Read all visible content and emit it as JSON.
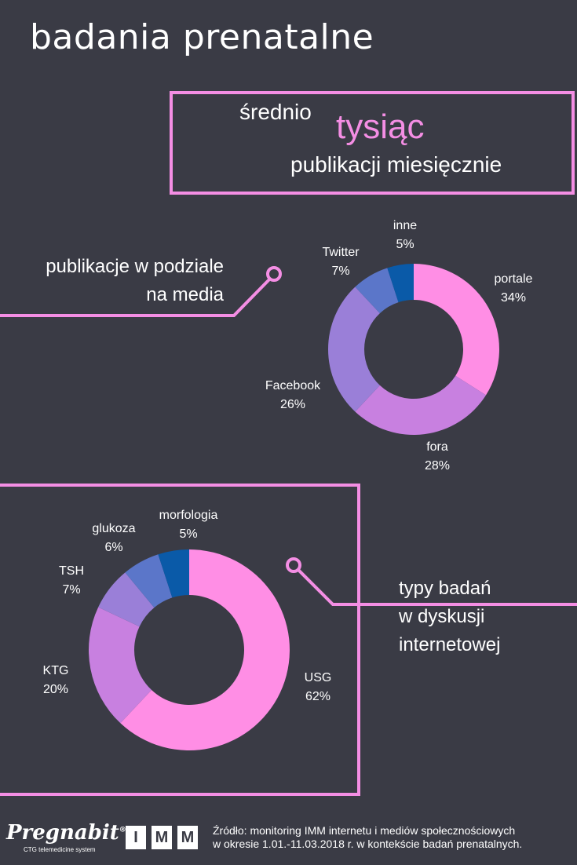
{
  "header": {
    "title": "badania prenatalne"
  },
  "stat": {
    "pre": "średnio",
    "highlight": "tysiąc",
    "post": "publikacji miesięcznie"
  },
  "section1": {
    "title_line1": "publikacje w podziale",
    "title_line2": "na media"
  },
  "section2": {
    "title_line1": "typy badań",
    "title_line2": "w dyskusji",
    "title_line3": "internetowej"
  },
  "colors": {
    "pink": "#f48ee4",
    "bg": "#3a3b45"
  },
  "chart_data": [
    {
      "type": "pie",
      "slices": [
        {
          "label": "portale",
          "value": 34,
          "display": "34%",
          "color": "#ff8ee5"
        },
        {
          "label": "fora",
          "value": 28,
          "display": "28%",
          "color": "#c880e0"
        },
        {
          "label": "Facebook",
          "value": 26,
          "display": "26%",
          "color": "#9a7fd8"
        },
        {
          "label": "Twitter",
          "value": 7,
          "display": "7%",
          "color": "#5b76c9"
        },
        {
          "label": "inne",
          "value": 5,
          "display": "5%",
          "color": "#0a5aa8"
        }
      ]
    },
    {
      "type": "pie",
      "slices": [
        {
          "label": "USG",
          "value": 62,
          "display": "62%",
          "color": "#ff8ee5"
        },
        {
          "label": "KTG",
          "value": 20,
          "display": "20%",
          "color": "#c880e0"
        },
        {
          "label": "TSH",
          "value": 7,
          "display": "7%",
          "color": "#9a7fd8"
        },
        {
          "label": "glukoza",
          "value": 6,
          "display": "6%",
          "color": "#5b76c9"
        },
        {
          "label": "morfologia",
          "value": 5,
          "display": "5%",
          "color": "#0a5aa8"
        }
      ]
    }
  ],
  "footer": {
    "source_line1": "Źródło: monitoring IMM internetu i mediów społecznościowych",
    "source_line2": "w okresie 1.01.-11.03.2018 r. w kontekście badań prenatalnych.",
    "logo1": "Pregnabit",
    "logo1_reg": "®",
    "logo1_sub": "CTG telemedicine system",
    "logo2_letters": [
      "I",
      "M",
      "M"
    ]
  }
}
